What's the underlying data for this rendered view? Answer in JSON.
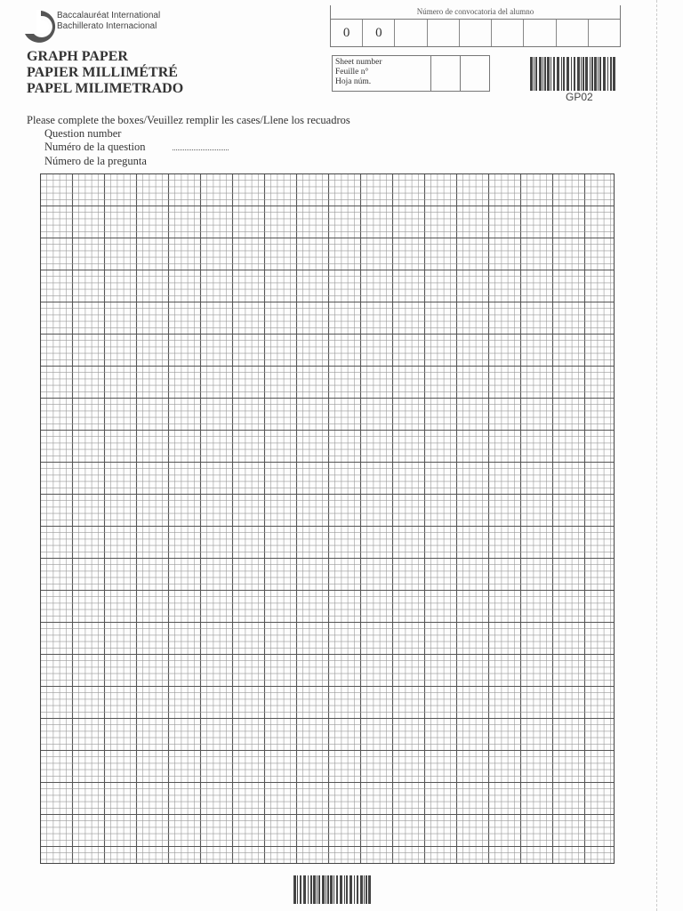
{
  "header": {
    "org_lines": [
      "Baccalauréat International",
      "Bachillerato Internacional"
    ],
    "titles": [
      "GRAPH PAPER",
      "PAPIER MILLIMÉTRÉ",
      "PAPEL MILIMETRADO"
    ],
    "candidate_label": "Número de convocatoria del alumno",
    "candidate_digits": [
      "0",
      "0",
      "",
      "",
      "",
      "",
      "",
      "",
      ""
    ],
    "sheet_label_lines": [
      "Sheet number",
      "Feuille n°",
      "Hoja núm."
    ],
    "form_code": "GP02"
  },
  "instructions": {
    "line": "Please complete the boxes/Veuillez remplir les cases/Llene los recuadros",
    "question_lines": [
      "Question number",
      "Numéro de la question",
      "Número de la pregunta"
    ],
    "dots": "................................"
  },
  "grid": {
    "minor_color": "#9a9a9a",
    "major_color": "#555555",
    "minor_per_major": 5
  }
}
